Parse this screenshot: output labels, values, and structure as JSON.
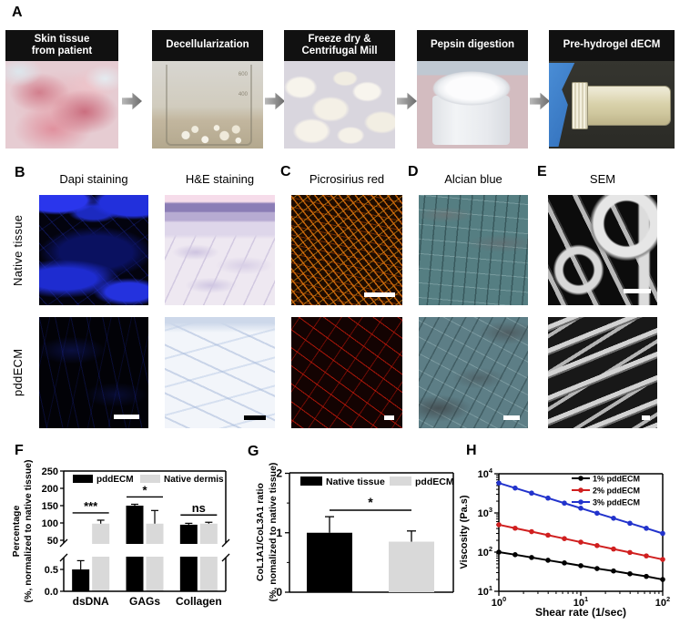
{
  "panel_a": {
    "label": "A",
    "steps": [
      {
        "caption": "Skin tissue\nfrom patient"
      },
      {
        "caption": "Decellularization"
      },
      {
        "caption": "Freeze dry &\nCentrifugal Mill"
      },
      {
        "caption": "Pepsin digestion"
      },
      {
        "caption": "Pre-hydrogel dECM"
      }
    ],
    "beaker_marks": [
      "600",
      "400"
    ]
  },
  "panel_b": {
    "label": "B",
    "columns": [
      "Dapi staining",
      "H&E staining"
    ],
    "rows": [
      "Native tissue",
      "pddECM"
    ]
  },
  "panel_c": {
    "label": "C",
    "title": "Picrosirius red"
  },
  "panel_d": {
    "label": "D",
    "title": "Alcian blue"
  },
  "panel_e": {
    "label": "E",
    "title": "SEM"
  },
  "panel_f": {
    "label": "F"
  },
  "panel_g": {
    "label": "G"
  },
  "panel_h": {
    "label": "H"
  },
  "chart_data": [
    {
      "id": "F",
      "type": "bar",
      "categories": [
        "dsDNA",
        "GAGs",
        "Collagen"
      ],
      "series": [
        {
          "name": "pddECM",
          "color": "#000000",
          "values": [
            0.5,
            150,
            95
          ],
          "errors": [
            0.2,
            4,
            4
          ]
        },
        {
          "name": "Native dermis",
          "color": "#d9d9d9",
          "values": [
            98,
            98,
            98
          ],
          "errors": [
            10,
            38,
            4
          ]
        }
      ],
      "significance": [
        "***",
        "*",
        "ns"
      ],
      "ylabel_line1": "Percentage",
      "ylabel_line2": "(%, normalized to native tissue)",
      "y_axis": {
        "broken": true,
        "lower_ticks": [
          {
            "label": "0.0",
            "v": 0
          },
          {
            "label": "0.5",
            "v": 0.5
          }
        ],
        "upper_ticks": [
          50,
          100,
          150,
          200,
          250
        ],
        "lower_range": [
          0,
          0.75
        ],
        "upper_range": [
          50,
          250
        ]
      },
      "legend_position": "top-inside",
      "grid": false
    },
    {
      "id": "G",
      "type": "bar",
      "bars": [
        {
          "name": "Native tissue",
          "color": "#000000",
          "value": 1.0,
          "error": 0.27
        },
        {
          "name": "pddECM",
          "color": "#d9d9d9",
          "value": 0.85,
          "error": 0.18
        }
      ],
      "significance": "*",
      "ylabel_line1": "CoL1A1/CoL3A1 ratio",
      "ylabel_line2": "(%, nomalized to native tissue)",
      "yticks": [
        0,
        1,
        2
      ],
      "ylim": [
        0,
        2
      ],
      "legend_position": "top-inside",
      "grid": false
    },
    {
      "id": "H",
      "type": "line",
      "xlabel": "Shear rate (1/sec)",
      "ylabel": "Viscosity (Pa.s)",
      "xscale": "log",
      "yscale": "log",
      "xlim": [
        1,
        100
      ],
      "ylim": [
        10,
        10000
      ],
      "x_tick_exponents": [
        0,
        1,
        2
      ],
      "y_tick_exponents": [
        1,
        2,
        3,
        4
      ],
      "x": [
        1,
        1.58,
        2.51,
        3.98,
        6.31,
        10,
        15.8,
        25.1,
        39.8,
        63.1,
        100
      ],
      "series": [
        {
          "name": "1% pddECM",
          "color": "#000000",
          "values": [
            100,
            86,
            73,
            62,
            53,
            45,
            38,
            33,
            28,
            24,
            20
          ]
        },
        {
          "name": "2% pddECM",
          "color": "#d01f1f",
          "values": [
            500,
            408,
            333,
            271,
            221,
            180,
            147,
            120,
            98,
            80,
            65
          ]
        },
        {
          "name": "3% pddECM",
          "color": "#2233cc",
          "values": [
            5800,
            4320,
            3210,
            2390,
            1780,
            1320,
            985,
            733,
            545,
            406,
            300
          ]
        }
      ],
      "legend_position": "top-right-inside",
      "grid": false
    }
  ]
}
